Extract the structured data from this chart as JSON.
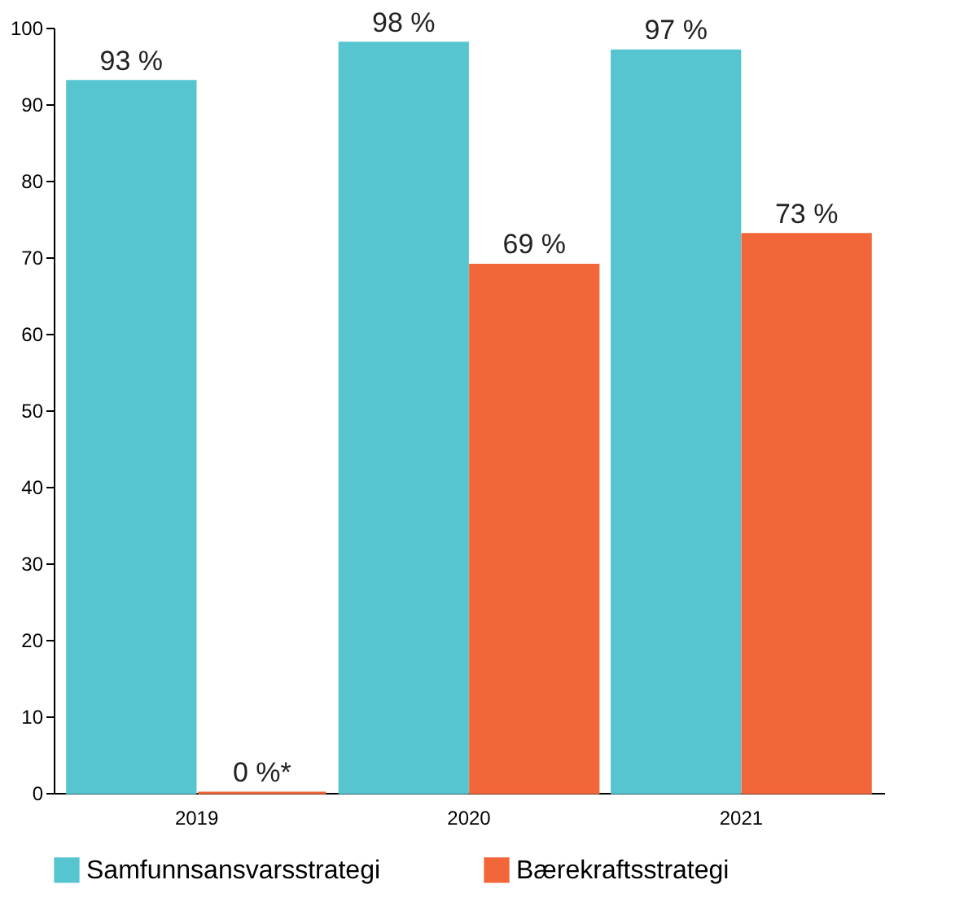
{
  "chart_data": {
    "type": "bar",
    "categories": [
      "2019",
      "2020",
      "2021"
    ],
    "series": [
      {
        "name": "Samfunnsansvarsstrategi",
        "color": "#56c5d0",
        "values": [
          93,
          98,
          97
        ],
        "value_labels": [
          "93 %",
          "98 %",
          "97 %"
        ]
      },
      {
        "name": "Bærekraftsstrategi",
        "color": "#f26739",
        "values": [
          0,
          69,
          73
        ],
        "value_labels": [
          "0 %*",
          "69 %",
          "73 %"
        ]
      }
    ],
    "ylim": [
      0,
      100
    ],
    "yticks": [
      0,
      10,
      20,
      30,
      40,
      50,
      60,
      70,
      80,
      90,
      100
    ],
    "grid": false,
    "legend": "bottom"
  }
}
